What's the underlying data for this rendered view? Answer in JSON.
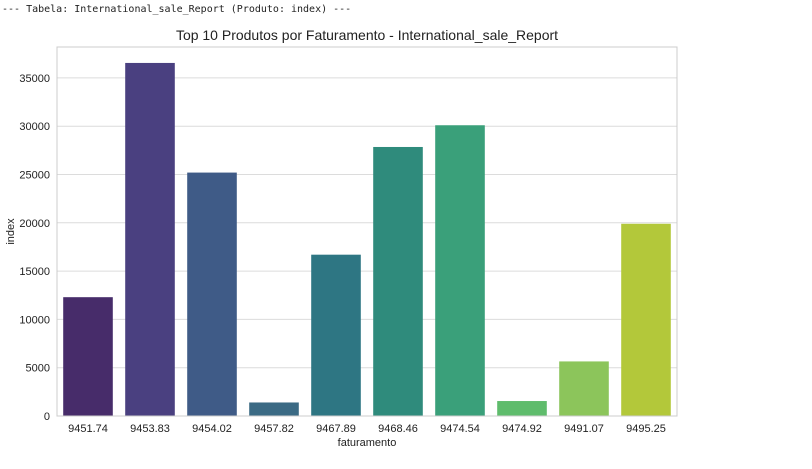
{
  "console": {
    "header": "--- Tabela: International_sale_Report (Produto: index) ---"
  },
  "chart_data": {
    "type": "bar",
    "title": "Top 10 Produtos por Faturamento - International_sale_Report",
    "xlabel": "faturamento",
    "ylabel": "index",
    "categories": [
      "9451.74",
      "9453.83",
      "9454.02",
      "9457.82",
      "9467.89",
      "9468.46",
      "9474.54",
      "9474.92",
      "9491.07",
      "9495.25"
    ],
    "values": [
      12300,
      36550,
      25200,
      1400,
      16700,
      27850,
      30100,
      1550,
      5650,
      19900
    ],
    "colors": [
      "#472c6a",
      "#4a4080",
      "#3f5b87",
      "#3b6a84",
      "#2e7683",
      "#2f8b7c",
      "#3aa07a",
      "#5fbc6c",
      "#8cc55b",
      "#b3c83a"
    ],
    "ylim": [
      0,
      38200
    ],
    "yticks": [
      0,
      5000,
      10000,
      15000,
      20000,
      25000,
      30000,
      35000
    ],
    "grid": true,
    "legend": "none"
  }
}
